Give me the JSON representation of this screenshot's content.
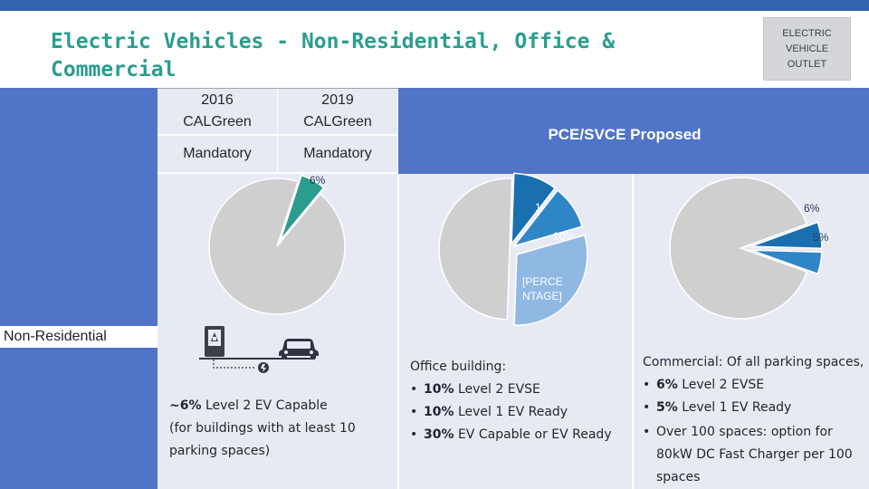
{
  "title": "Electric Vehicles - Non-Residential, Office & Commercial",
  "outlet_label": "ELECTRIC VEHICLE OUTLET",
  "header": {
    "col_2016": "2016 CALGreen",
    "col_2019": "2019 CALGreen",
    "row_mandatory_2016": "Mandatory",
    "row_mandatory_2019": "Mandatory",
    "proposed": "PCE/SVCE Proposed"
  },
  "row_label": "Non-Residential",
  "colors": {
    "accent_blue": "#4f74c8",
    "title_teal": "#2a9d8f",
    "panel_gray": "#e7eaf3",
    "slice_teal": "#2a9d8f",
    "slice_dark_blue": "#1a6fae",
    "slice_mid_blue": "#2e86c6",
    "slice_light_blue": "#8fb8e3",
    "slice_gray": "#cfcfcf"
  },
  "chart_data": [
    {
      "type": "pie",
      "name": "2019 CALGreen Mandatory",
      "slices": [
        {
          "label": "6%",
          "value": 6,
          "color": "#2a9d8f"
        },
        {
          "label": "",
          "value": 94,
          "color": "#cfcfcf"
        }
      ]
    },
    {
      "type": "pie",
      "name": "PCE/SVCE Proposed - Office building",
      "slices": [
        {
          "label": "10%",
          "value": 10,
          "color": "#1a6fae"
        },
        {
          "label": "10%",
          "value": 10,
          "color": "#2e86c6"
        },
        {
          "label": "[PERCENTAGE]",
          "value": 30,
          "color": "#8fb8e3"
        },
        {
          "label": "",
          "value": 50,
          "color": "#cfcfcf"
        }
      ]
    },
    {
      "type": "pie",
      "name": "PCE/SVCE Proposed - Commercial",
      "slices": [
        {
          "label": "6%",
          "value": 6,
          "color": "#1a6fae"
        },
        {
          "label": "5%",
          "value": 5,
          "color": "#2e86c6"
        },
        {
          "label": "",
          "value": 89,
          "color": "#cfcfcf"
        }
      ]
    }
  ],
  "icons": {
    "charger": "ev-charger-icon",
    "car": "car-icon",
    "plug": "plug-icon"
  },
  "col2019_desc": {
    "line1_strong": "~6%",
    "line1_rest": " Level 2 EV Capable",
    "line2": "(for buildings with at least 10",
    "line3": "parking spaces)"
  },
  "office_desc": {
    "heading": "Office building:",
    "bullets": [
      {
        "strong": "10%",
        "rest": " Level 2 EVSE"
      },
      {
        "strong": "10%",
        "rest": " Level 1 EV Ready"
      },
      {
        "strong": "30%",
        "rest": " EV Capable or EV Ready"
      }
    ]
  },
  "commercial_desc": {
    "heading": "Commercial: Of all parking spaces,",
    "bullets": [
      {
        "strong": "6%",
        "rest": " Level 2 EVSE"
      },
      {
        "strong": "5%",
        "rest": " Level 1 EV Ready"
      }
    ],
    "option_line1": "Over 100 spaces: option for",
    "option_line2": "80kW DC Fast Charger per 100",
    "option_line3": "spaces"
  }
}
